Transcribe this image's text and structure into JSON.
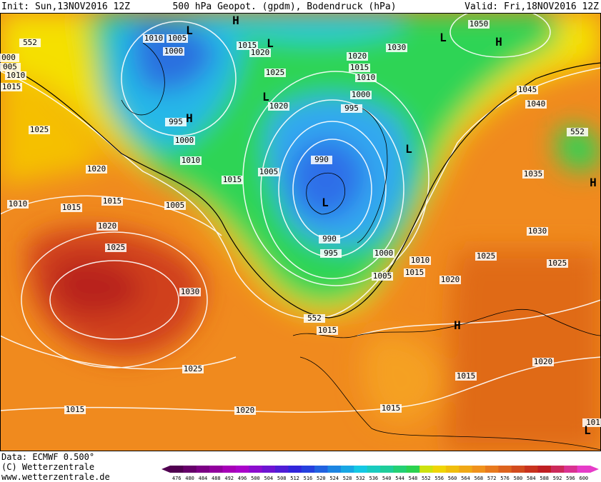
{
  "header": {
    "init": "Init: Sun,13NOV2016 12Z",
    "title": "500 hPa Geopot. (gpdm), Bodendruck (hPa)",
    "valid": "Valid: Fri,18NOV2016 12Z"
  },
  "isobar_labels": [
    "1010",
    "1005",
    "1000",
    "1015",
    "1020",
    "000",
    "005",
    "1010",
    "1015",
    "1025",
    "1020",
    "1015",
    "1010",
    "1030",
    "1050",
    "1045",
    "1040",
    "1020",
    "1000",
    "995",
    "995",
    "1000",
    "1010",
    "1025",
    "1020",
    "1015",
    "1005",
    "990",
    "1035",
    "1010",
    "1015",
    "1015",
    "1005",
    "1020",
    "1025",
    "990",
    "995",
    "1000",
    "1010",
    "1015",
    "1005",
    "1030",
    "1025",
    "1025",
    "1020",
    "1030",
    "552",
    "1015",
    "1025",
    "1015",
    "1020",
    "1015",
    "1020",
    "1015",
    "101",
    "552",
    "552"
  ],
  "pressure_centers": [
    "L",
    "L",
    "L",
    "H",
    "H",
    "L",
    "H",
    "L",
    "L",
    "H",
    "H",
    "L"
  ],
  "footer": {
    "data": "Data: ECMWF  0.500°",
    "copyright": "(C) Wetterzentrale",
    "url": "www.wetterzentrale.de"
  },
  "colorbar": {
    "labels": [
      476,
      480,
      484,
      488,
      492,
      496,
      500,
      504,
      508,
      512,
      516,
      520,
      524,
      528,
      532,
      536,
      540,
      544,
      548,
      552,
      556,
      560,
      564,
      568,
      572,
      576,
      580,
      584,
      588,
      592,
      596,
      600
    ]
  }
}
